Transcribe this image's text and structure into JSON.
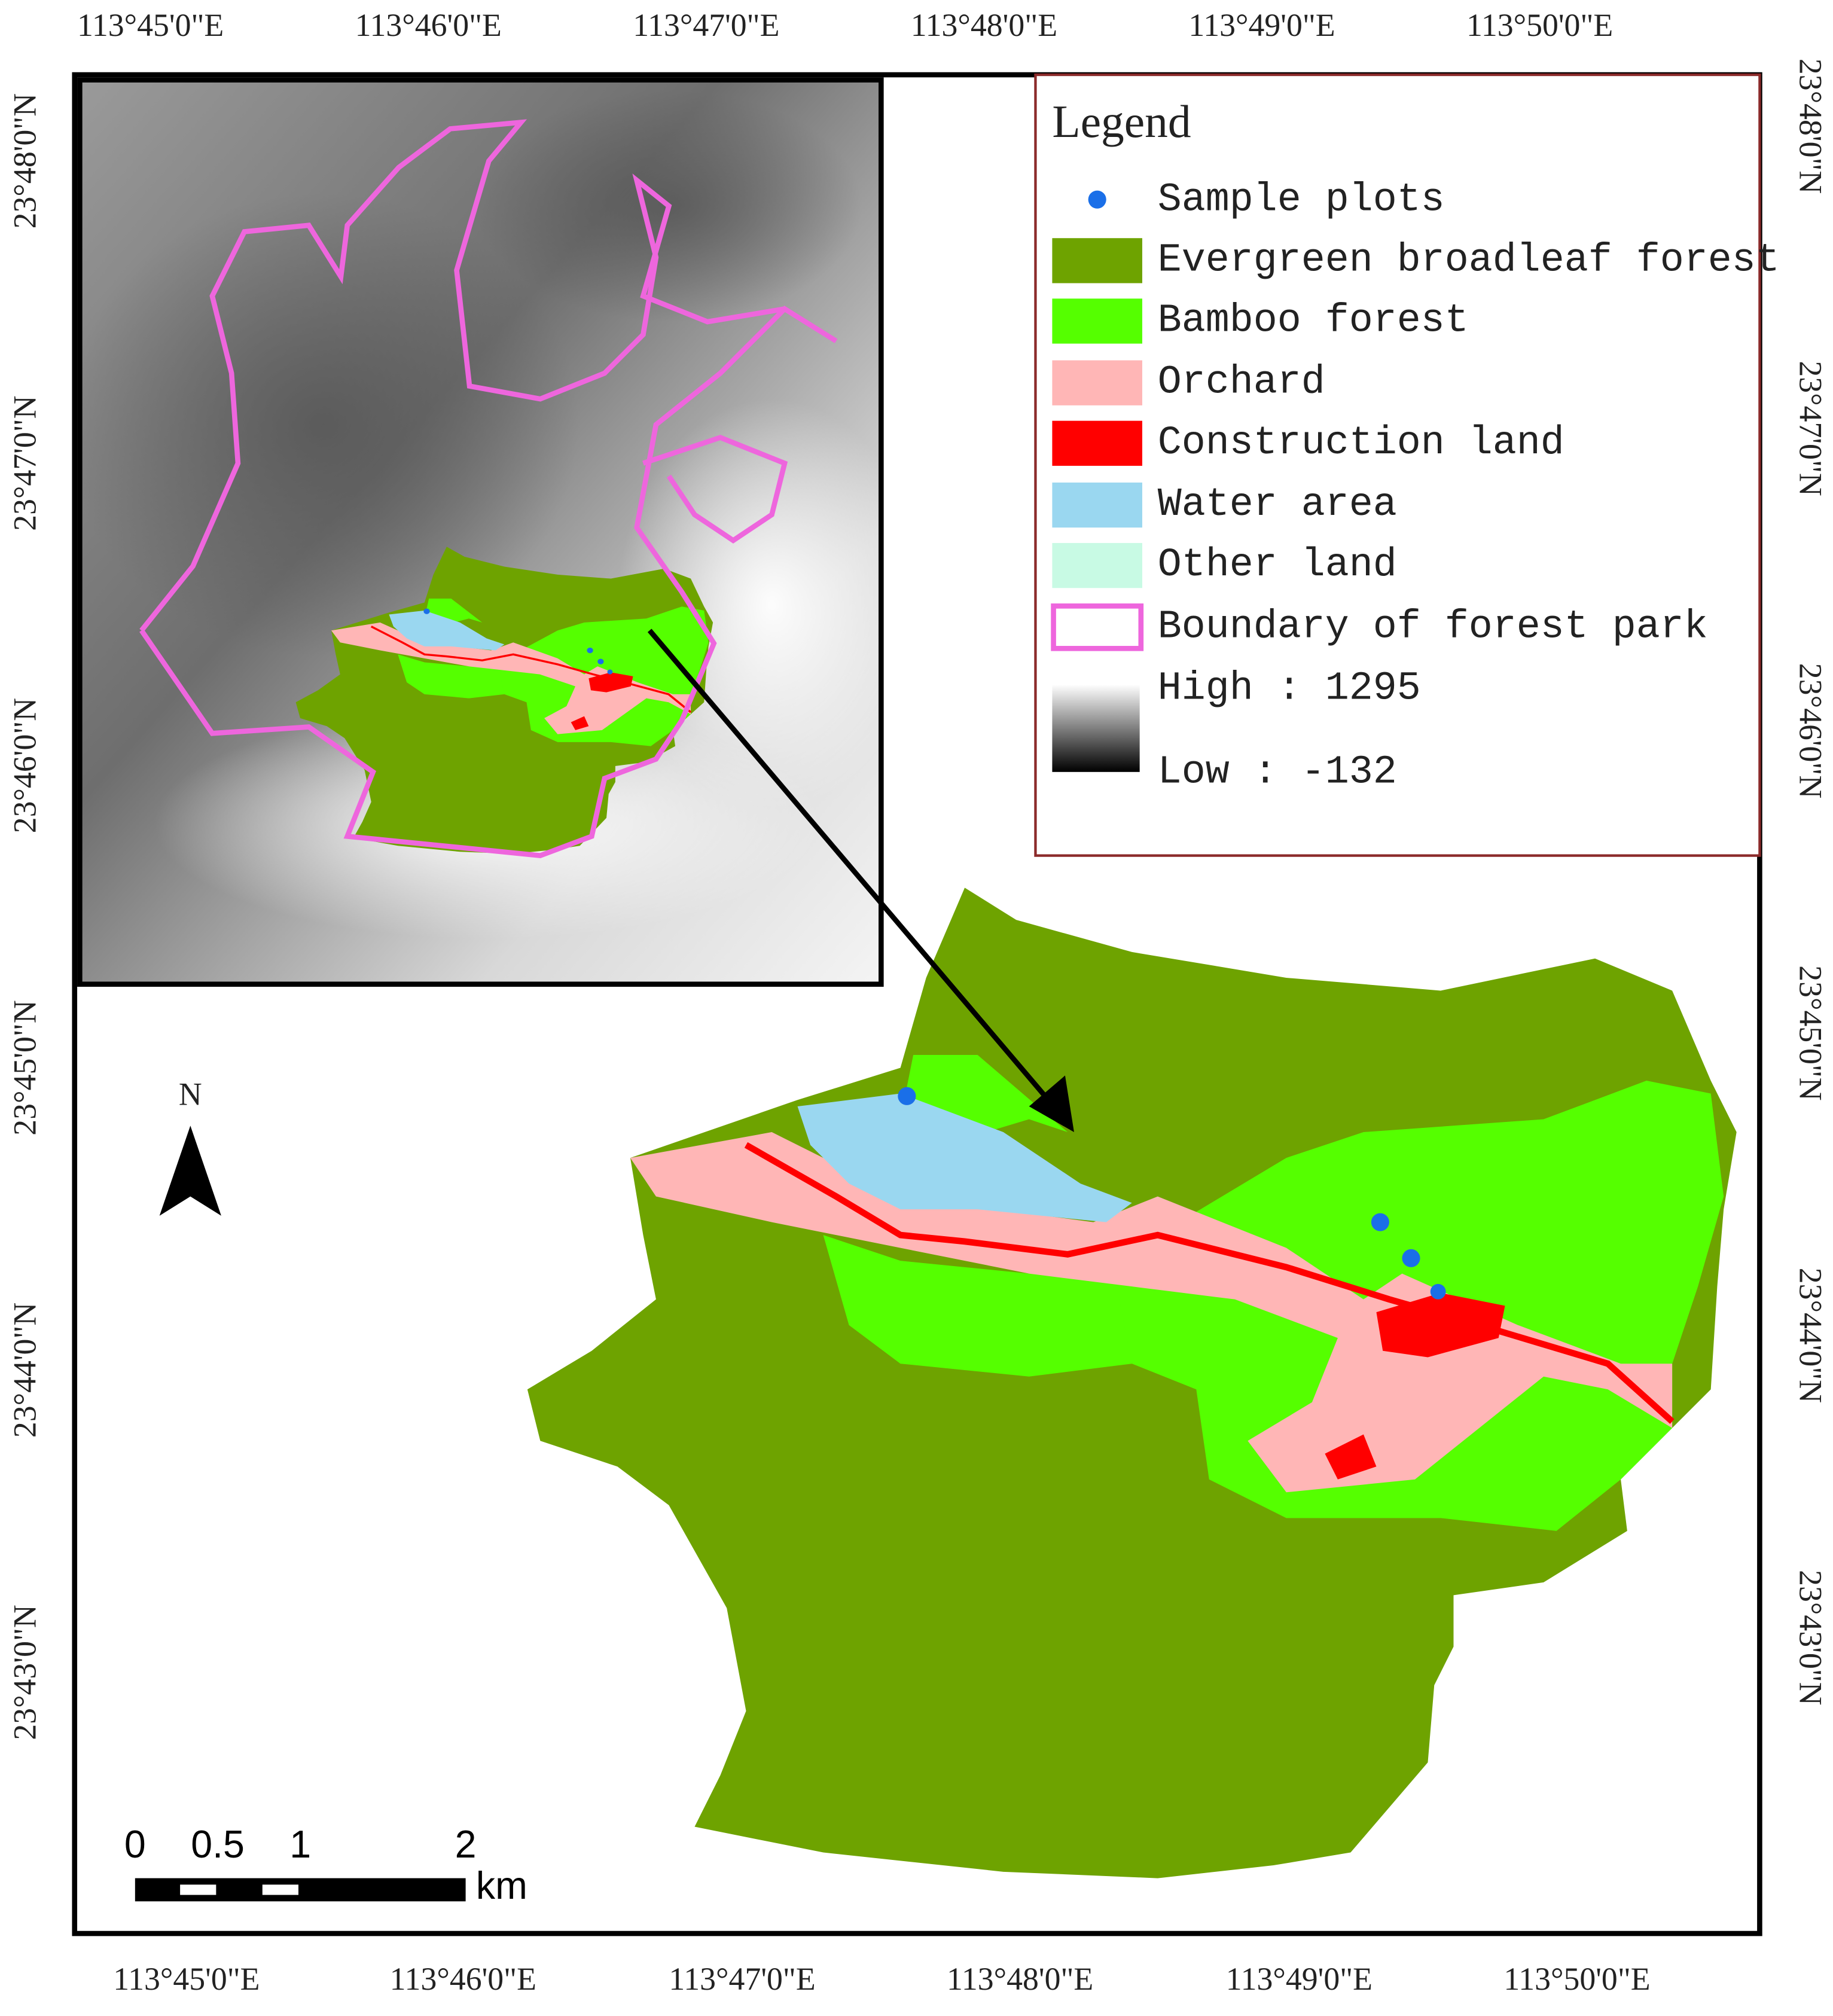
{
  "top_labels": [
    "113°45'0\"E",
    "113°46'0\"E",
    "113°47'0\"E",
    "113°48'0\"E",
    "113°49'0\"E",
    "113°50'0\"E"
  ],
  "bottom_labels": [
    "113°45'0\"E",
    "113°46'0\"E",
    "113°47'0\"E",
    "113°48'0\"E",
    "113°49'0\"E",
    "113°50'0\"E"
  ],
  "left_labels": [
    "23°48'0\"N",
    "23°47'0\"N",
    "23°46'0\"N",
    "23°45'0\"N",
    "23°44'0\"N",
    "23°43'0\"N"
  ],
  "right_labels": [
    "23°48'0\"N",
    "23°47'0\"N",
    "23°46'0\"N",
    "23°45'0\"N",
    "23°44'0\"N",
    "23°43'0\"N"
  ],
  "legend": {
    "title": "Legend",
    "items": [
      "Sample plots",
      "Evergreen broadleaf forest",
      "Bamboo forest",
      "Orchard",
      "Construction land",
      "Water area",
      "Other land",
      "Boundary of forest park"
    ],
    "high": "High : 1295",
    "low": "Low : -132"
  },
  "north": "N",
  "scale_bar": {
    "ticks": [
      0,
      0.5,
      1,
      2
    ],
    "unit": "km"
  }
}
